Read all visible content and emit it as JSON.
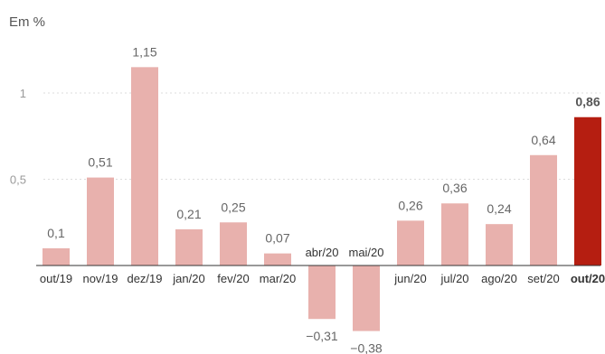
{
  "chart_data": {
    "type": "bar",
    "unit_label": "Em %",
    "categories": [
      "out/19",
      "nov/19",
      "dez/19",
      "jan/20",
      "fev/20",
      "mar/20",
      "abr/20",
      "mai/20",
      "jun/20",
      "jul/20",
      "ago/20",
      "set/20",
      "out/20"
    ],
    "values": [
      0.1,
      0.51,
      1.15,
      0.21,
      0.25,
      0.07,
      -0.31,
      -0.38,
      0.26,
      0.36,
      0.24,
      0.64,
      0.86
    ],
    "value_labels": [
      "0,1",
      "0,51",
      "1,15",
      "0,21",
      "0,25",
      "0,07",
      "−0,31",
      "−0,38",
      "0,26",
      "0,36",
      "0,24",
      "0,64",
      "0,86"
    ],
    "yticks": [
      0.5,
      1
    ],
    "ytick_labels": [
      "0,5",
      "1"
    ],
    "ylim": [
      -0.4,
      1.2
    ],
    "grid": true,
    "highlight_index": 12,
    "colors": {
      "bar": "#e8b1ad",
      "highlight": "#b51e11",
      "grid": "#dddddd",
      "axis": "#333333"
    }
  }
}
